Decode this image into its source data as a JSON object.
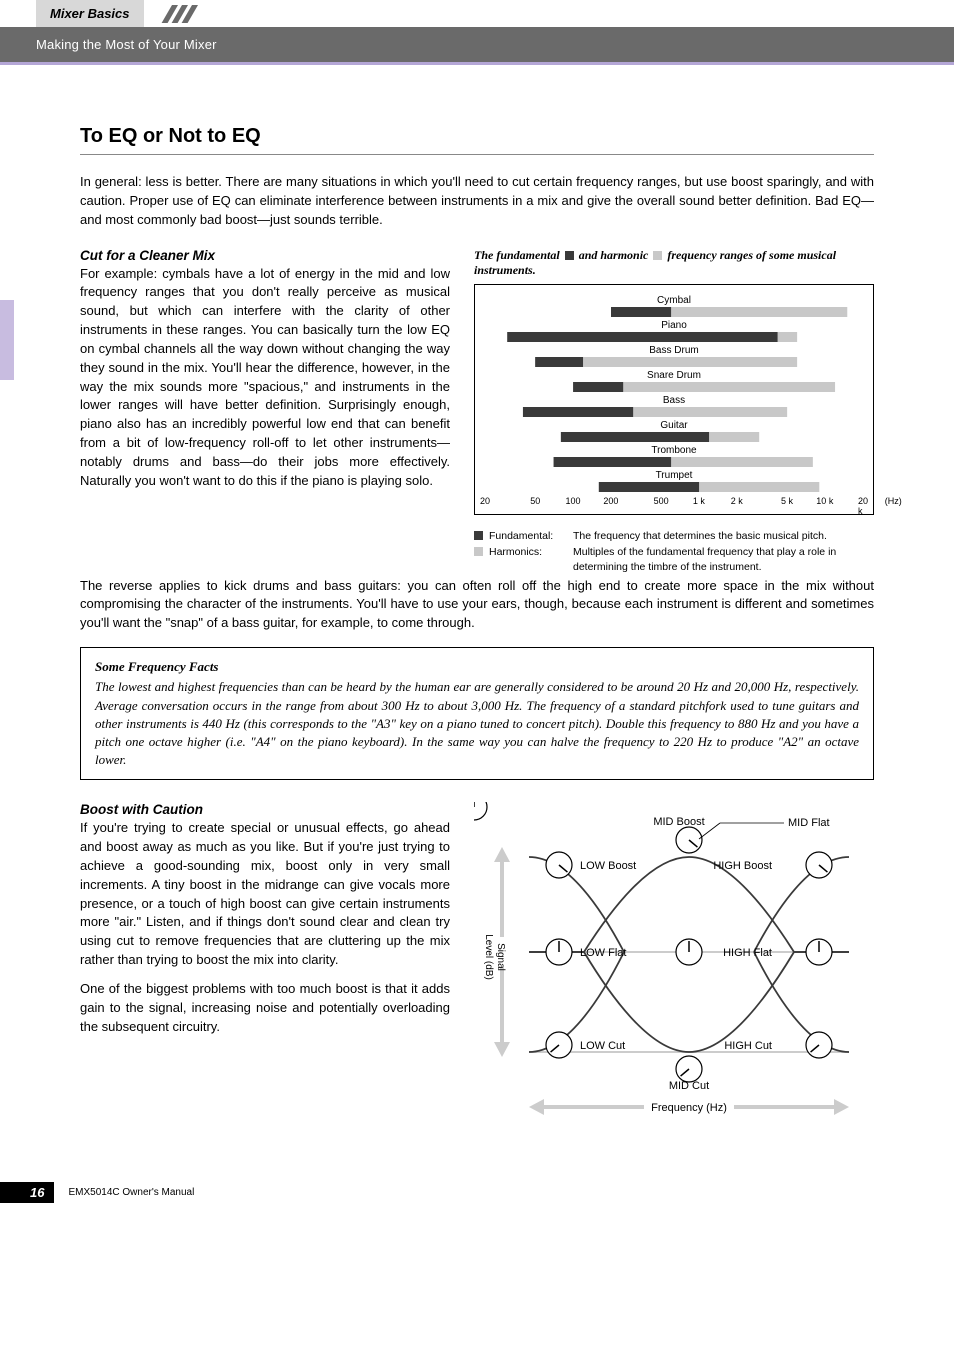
{
  "header": {
    "tab": "Mixer Basics",
    "subtitle": "Making the Most of Your Mixer"
  },
  "main": {
    "title": "To EQ or Not to EQ",
    "lead": "In general: less is better. There are many situations in which you'll need to cut certain frequency ranges, but use boost sparingly, and with caution. Proper use of EQ can eliminate interference between instruments in a mix and give the overall sound better definition. Bad EQ—and most commonly bad boost—just sounds terrible.",
    "cut": {
      "heading": "Cut for a Cleaner Mix",
      "p1": "For example: cymbals have a lot of energy in the mid and low frequency ranges that you don't really perceive as musical sound, but which can interfere with the clarity of other instruments in these ranges. You can basically turn the low EQ on cymbal channels all the way down without changing the way they sound in the mix. You'll hear the difference, however, in the way the mix sounds more \"spacious,\" and instruments in the lower ranges will have better definition. Surprisingly enough, piano also has an incredibly powerful low end that can benefit from a bit of low-frequency roll-off to let other instruments—notably drums and bass—do their jobs more effectively. Naturally you won't want to do this if the piano is playing solo.",
      "p2": "The reverse applies to kick drums and bass guitars: you can often roll off the high end to create more space in the mix without compromising the character of the instruments. You'll have to use your ears, though, because each instrument is different and sometimes you'll want the \"snap\" of a bass guitar, for example, to come through."
    },
    "chart": {
      "caption_pre": "The fundamental",
      "caption_mid": "and harmonic",
      "caption_post": "frequency ranges of some musical instruments.",
      "fundamental_color": "#3a3a3a",
      "harmonic_color": "#c8c8c8",
      "axis_min_log": 1.301,
      "axis_max_log": 4.301,
      "instruments": [
        {
          "name": "Cymbal",
          "f0": 200,
          "f1": 600,
          "h1": 15000
        },
        {
          "name": "Piano",
          "f0": 30,
          "f1": 4200,
          "h1": 6000
        },
        {
          "name": "Bass Drum",
          "f0": 50,
          "f1": 120,
          "h1": 6000
        },
        {
          "name": "Snare Drum",
          "f0": 100,
          "f1": 250,
          "h1": 12000
        },
        {
          "name": "Bass",
          "f0": 40,
          "f1": 300,
          "h1": 5000
        },
        {
          "name": "Guitar",
          "f0": 80,
          "f1": 1200,
          "h1": 3000
        },
        {
          "name": "Trombone",
          "f0": 70,
          "f1": 600,
          "h1": 8000
        },
        {
          "name": "Trumpet",
          "f0": 160,
          "f1": 1000,
          "h1": 9000
        }
      ],
      "ticks": [
        {
          "v": "20",
          "p": 0
        },
        {
          "v": "50",
          "p": 13.3
        },
        {
          "v": "100",
          "p": 23.3
        },
        {
          "v": "200",
          "p": 33.3
        },
        {
          "v": "500",
          "p": 46.6
        },
        {
          "v": "1 k",
          "p": 56.6
        },
        {
          "v": "2 k",
          "p": 66.6
        },
        {
          "v": "5 k",
          "p": 79.9
        },
        {
          "v": "10 k",
          "p": 89.9
        },
        {
          "v": "20 k",
          "p": 100
        },
        {
          "v": "(Hz)",
          "p": 108
        }
      ],
      "legend": {
        "fundamental": {
          "label": "Fundamental:",
          "text": "The frequency that determines the basic musical pitch."
        },
        "harmonics": {
          "label": "Harmonics:",
          "text": "Multiples of the fundamental frequency that play a role in determining the timbre of the instrument."
        }
      }
    },
    "facts": {
      "title": "Some Frequency Facts",
      "body": "The lowest and highest frequencies than can be heard by the human ear are generally considered to be around 20 Hz and 20,000 Hz, respectively. Average conversation occurs in the range from about 300 Hz to about 3,000 Hz. The frequency of a standard pitchfork used to tune guitars and other instruments is 440 Hz (this corresponds to the \"A3\" key on a piano tuned to concert pitch). Double this frequency to 880 Hz and you have a pitch one octave higher (i.e. \"A4\" on the piano keyboard). In the same way you can halve the frequency to 220 Hz to produce \"A2\" an octave lower."
    },
    "boost": {
      "heading": "Boost with Caution",
      "p1": "If you're trying to create special or unusual effects, go ahead and boost away as much as you like. But if you're just trying to achieve a good-sounding mix, boost only in very small increments. A tiny boost in the midrange can give vocals more presence, or a touch of high boost can give certain instruments more \"air.\" Listen, and if things don't sound clear and clean try using cut to remove frequencies that are cluttering up the mix rather than trying to boost the mix into clarity.",
      "p2": "One of the biggest problems with too much boost is that it adds gain to the signal, increasing noise and potentially overloading the subsequent circuitry."
    },
    "eq_diagram": {
      "y_label": "Signal\nLevel (dB)",
      "x_label": "Frequency (Hz)",
      "labels": {
        "low_boost": "LOW Boost",
        "mid_boost": "MID Boost",
        "mid_flat": "MID Flat",
        "high_boost": "HIGH Boost",
        "low_flat": "LOW Flat",
        "high_flat": "HIGH Flat",
        "low_cut": "LOW Cut",
        "mid_cut": "MID Cut",
        "high_cut": "HIGH Cut"
      },
      "colors": {
        "curve": "#3a3a3a",
        "flat": "#cccccc",
        "arrow": "#cccccc"
      }
    }
  },
  "footer": {
    "page": "16",
    "text": "EMX5014C Owner's Manual"
  }
}
